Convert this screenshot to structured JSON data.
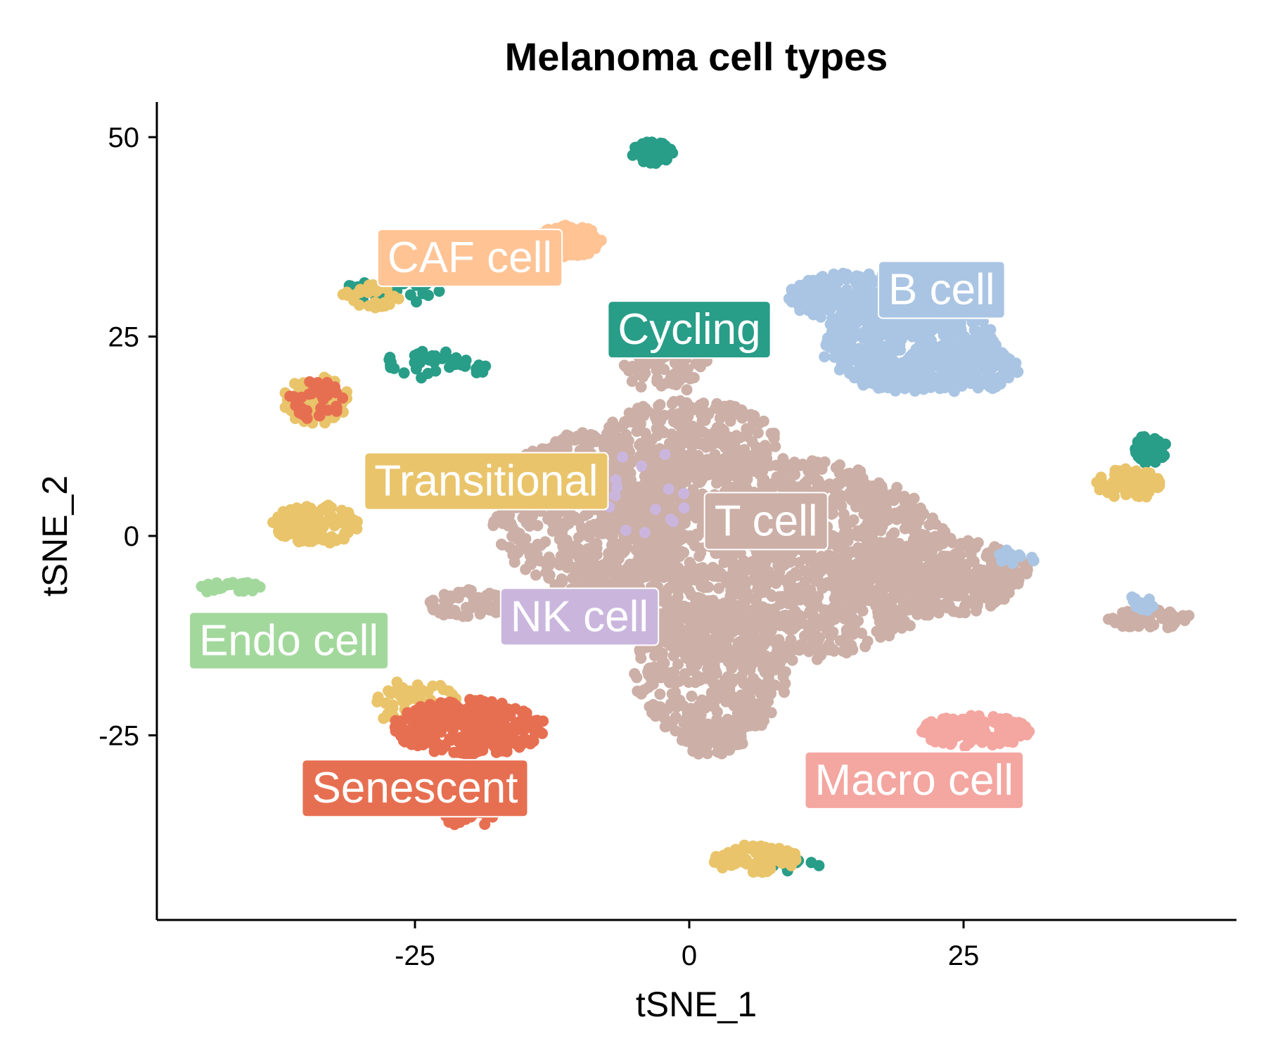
{
  "chart_data": {
    "type": "scatter",
    "title": "Melanoma cell types",
    "xlabel": "tSNE_1",
    "ylabel": "tSNE_2",
    "xlim": [
      -48,
      50
    ],
    "ylim": [
      -48,
      55
    ],
    "xticks": [
      -25,
      0,
      25
    ],
    "yticks": [
      -25,
      0,
      25,
      50
    ],
    "grid": false,
    "legend": "none",
    "series": [
      {
        "name": "T cell",
        "color": "#CCAFA6"
      },
      {
        "name": "B cell",
        "color": "#AAC5E3"
      },
      {
        "name": "Cycling",
        "color": "#289D88"
      },
      {
        "name": "CAF cell",
        "color": "#FFC394"
      },
      {
        "name": "Transitional",
        "color": "#E9C46A"
      },
      {
        "name": "NK cell",
        "color": "#CAB6DD"
      },
      {
        "name": "Endo cell",
        "color": "#A3D89D"
      },
      {
        "name": "Senescent",
        "color": "#E76F51"
      },
      {
        "name": "Macro cell",
        "color": "#F4A6A0"
      }
    ],
    "labels": [
      {
        "text": "CAF cell",
        "x": -20,
        "y": 35,
        "color": "#FFC394"
      },
      {
        "text": "B cell",
        "x": 23,
        "y": 31,
        "color": "#AAC5E3"
      },
      {
        "text": "Cycling",
        "x": 0,
        "y": 26,
        "color": "#289D88"
      },
      {
        "text": "Transitional",
        "x": -18.5,
        "y": 7,
        "color": "#E9C46A"
      },
      {
        "text": "T cell",
        "x": 7,
        "y": 2,
        "color": "#CCAFA6"
      },
      {
        "text": "NK cell",
        "x": -10,
        "y": -10,
        "color": "#CAB6DD"
      },
      {
        "text": "Endo cell",
        "x": -36.5,
        "y": -13,
        "color": "#A3D89D"
      },
      {
        "text": "Senescent",
        "x": -25,
        "y": -31.5,
        "color": "#E76F51"
      },
      {
        "text": "Macro cell",
        "x": 20.5,
        "y": -30.5,
        "color": "#F4A6A0"
      }
    ],
    "clusters": [
      {
        "series": "T cell",
        "cx": 7,
        "cy": -3,
        "rx": 17,
        "ry": 13,
        "n": 1500
      },
      {
        "series": "T cell",
        "cx": -9,
        "cy": 3,
        "rx": 9,
        "ry": 10,
        "n": 500
      },
      {
        "series": "T cell",
        "cx": 2,
        "cy": -17,
        "rx": 7,
        "ry": 9,
        "n": 400
      },
      {
        "series": "T cell",
        "cx": 22,
        "cy": -5,
        "rx": 9,
        "ry": 5,
        "n": 450
      },
      {
        "series": "T cell",
        "cx": 0,
        "cy": 12,
        "rx": 8,
        "ry": 5,
        "n": 250
      },
      {
        "series": "T cell",
        "cx": -2,
        "cy": 21,
        "rx": 4,
        "ry": 3,
        "n": 70
      },
      {
        "series": "T cell",
        "cx": -20,
        "cy": -8.5,
        "rx": 4,
        "ry": 1.8,
        "n": 60
      },
      {
        "series": "T cell",
        "cx": 42,
        "cy": -10.5,
        "rx": 4,
        "ry": 1.2,
        "n": 70
      },
      {
        "series": "T cell",
        "cx": 2,
        "cy": -25.5,
        "rx": 3,
        "ry": 2,
        "n": 80
      },
      {
        "series": "B cell",
        "cx": 20,
        "cy": 24,
        "rx": 8,
        "ry": 6,
        "n": 500
      },
      {
        "series": "B cell",
        "cx": 15,
        "cy": 30,
        "rx": 6,
        "ry": 3,
        "n": 200
      },
      {
        "series": "B cell",
        "cx": 25,
        "cy": 21,
        "rx": 5,
        "ry": 3,
        "n": 120
      },
      {
        "series": "B cell",
        "cx": 41,
        "cy": -8.5,
        "rx": 1.5,
        "ry": 1,
        "n": 12
      },
      {
        "series": "B cell",
        "cx": 30,
        "cy": -3,
        "rx": 2,
        "ry": 1.5,
        "n": 10
      },
      {
        "series": "Cycling",
        "cx": -3.5,
        "cy": 48,
        "rx": 2,
        "ry": 1.5,
        "n": 40
      },
      {
        "series": "Cycling",
        "cx": -27,
        "cy": 30.5,
        "rx": 5,
        "ry": 1.5,
        "n": 30
      },
      {
        "series": "Cycling",
        "cx": -23,
        "cy": 21.5,
        "rx": 5,
        "ry": 1.8,
        "n": 35
      },
      {
        "series": "Cycling",
        "cx": 42,
        "cy": 11,
        "rx": 1.5,
        "ry": 2,
        "n": 40
      },
      {
        "series": "Cycling",
        "cx": 9,
        "cy": -41,
        "rx": 3,
        "ry": 1,
        "n": 15
      },
      {
        "series": "CAF cell",
        "cx": -11,
        "cy": 37,
        "rx": 3,
        "ry": 2,
        "n": 80
      },
      {
        "series": "Transitional",
        "cx": -34,
        "cy": 1.5,
        "rx": 4,
        "ry": 2.5,
        "n": 120
      },
      {
        "series": "Transitional",
        "cx": -34,
        "cy": 17,
        "rx": 3,
        "ry": 3,
        "n": 80
      },
      {
        "series": "Transitional",
        "cx": 40,
        "cy": 6.5,
        "rx": 3,
        "ry": 2,
        "n": 80
      },
      {
        "series": "Transitional",
        "cx": -25,
        "cy": -21,
        "rx": 4,
        "ry": 3,
        "n": 60
      },
      {
        "series": "Transitional",
        "cx": 6,
        "cy": -40.5,
        "rx": 4,
        "ry": 1.8,
        "n": 90
      },
      {
        "series": "Transitional",
        "cx": -29,
        "cy": 30,
        "rx": 3,
        "ry": 1.5,
        "n": 30
      },
      {
        "series": "NK cell",
        "cx": -4,
        "cy": 5,
        "rx": 4,
        "ry": 6,
        "n": 15
      },
      {
        "series": "Endo cell",
        "cx": -42,
        "cy": -6.5,
        "rx": 3,
        "ry": 0.8,
        "n": 30
      },
      {
        "series": "Senescent",
        "cx": -20,
        "cy": -24,
        "rx": 7,
        "ry": 3.5,
        "n": 300
      },
      {
        "series": "Senescent",
        "cx": -34,
        "cy": 17,
        "rx": 2.5,
        "ry": 2.5,
        "n": 40
      },
      {
        "series": "Senescent",
        "cx": -20,
        "cy": -35,
        "rx": 3,
        "ry": 1.5,
        "n": 30
      },
      {
        "series": "Macro cell",
        "cx": 26,
        "cy": -24.5,
        "rx": 5,
        "ry": 2,
        "n": 120
      }
    ]
  }
}
